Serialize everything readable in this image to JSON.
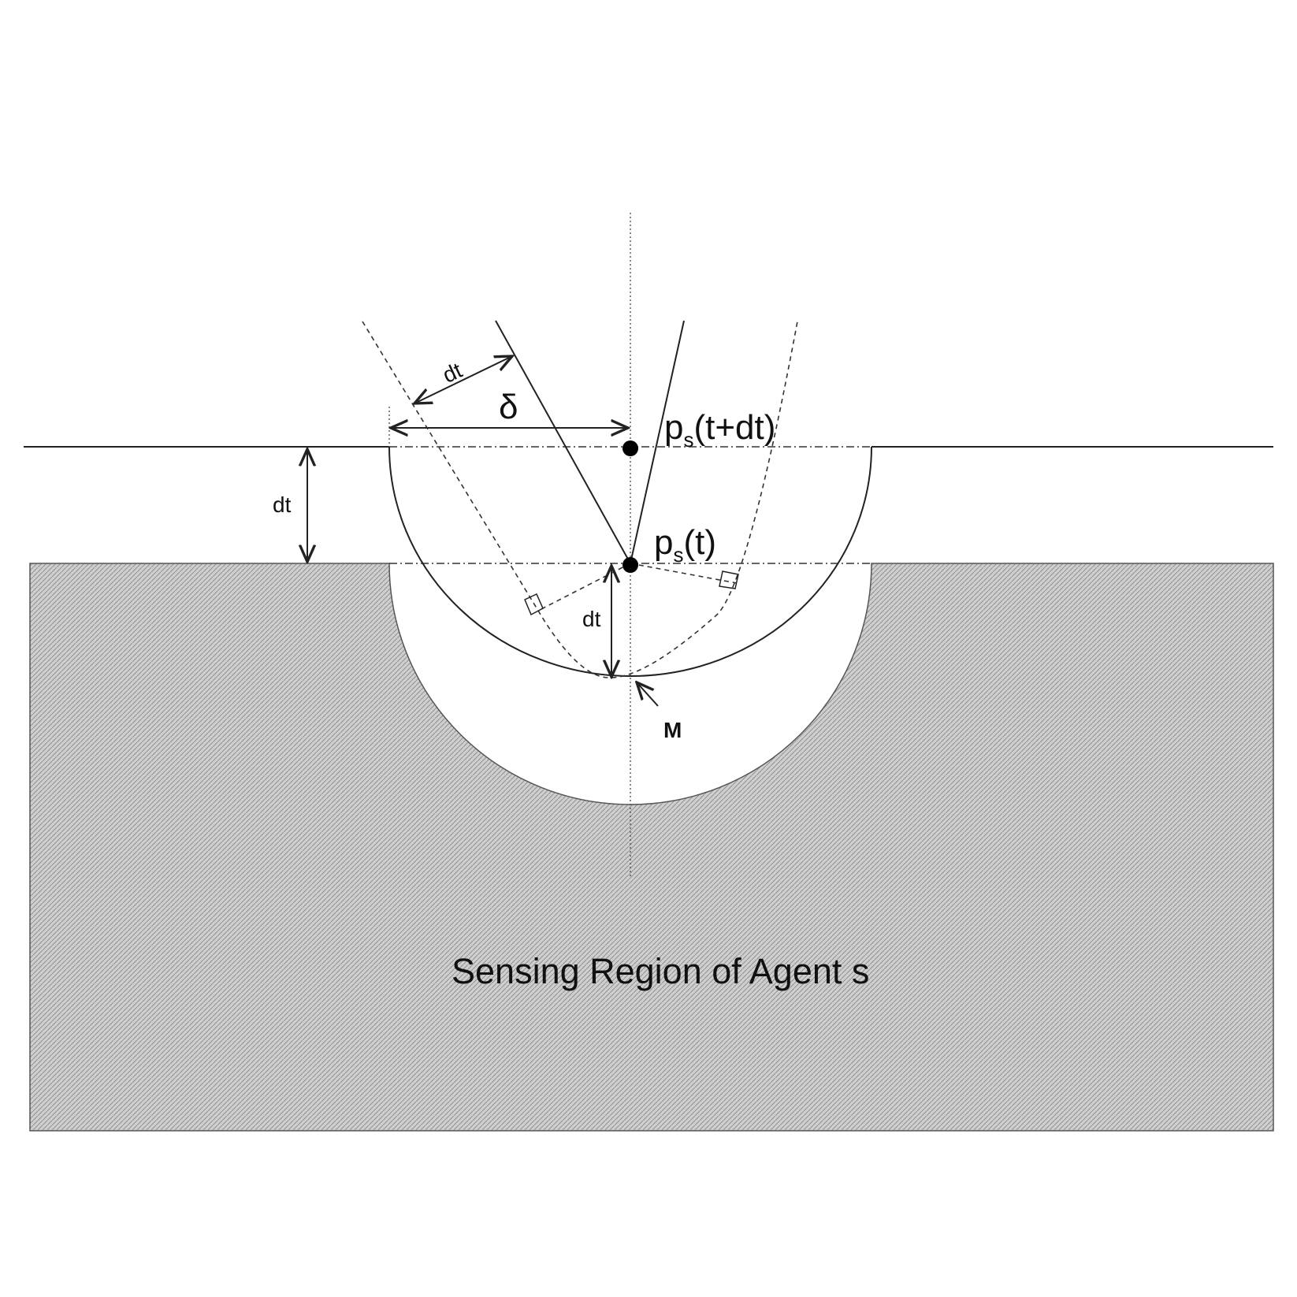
{
  "labels": {
    "delta": "δ",
    "ps_next_main": "p",
    "ps_next_sub": "s",
    "ps_next_tail": "(t+dt)",
    "ps_now_main": "p",
    "ps_now_sub": "s",
    "ps_now_tail": "(t)",
    "dt_left": "dt",
    "dt_diagonal": "dt",
    "dt_inner": "dt",
    "point_m": "M",
    "region": "Sensing Region of Agent s"
  },
  "colors": {
    "region_fill": "#c8c8c8",
    "region_hatch": "#8a8a8a",
    "line": "#222222",
    "background": "#ffffff"
  }
}
